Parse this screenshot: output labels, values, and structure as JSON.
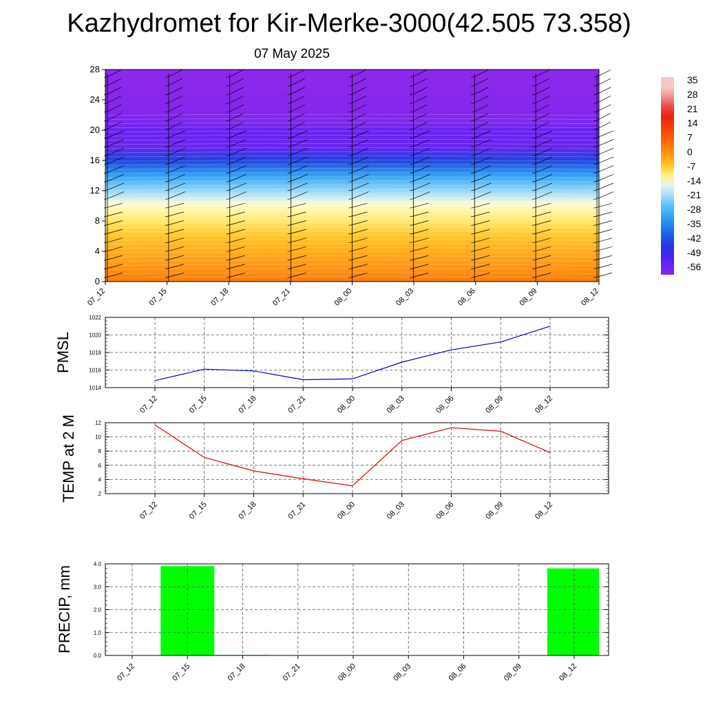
{
  "title": "Kazhydromet for Kir-Merke-3000(42.505 73.358)",
  "subtitle": "07 May 2025",
  "time_labels": [
    "07_12",
    "07_15",
    "07_18",
    "07_21",
    "08_00",
    "08_03",
    "08_06",
    "08_09",
    "08_12"
  ],
  "colors": {
    "pmsl_line": "#0000cc",
    "temp_line": "#dd0000",
    "precip_bar": "#00ff00",
    "barb": "#000000"
  },
  "chart_data": [
    {
      "type": "heatmap",
      "title": "",
      "xlabel": "",
      "ylabel": "",
      "x": [
        "07_12",
        "07_15",
        "07_18",
        "07_21",
        "08_00",
        "08_03",
        "08_06",
        "08_09",
        "08_12"
      ],
      "ylim": [
        0,
        28
      ],
      "yticks": [
        0,
        4,
        8,
        12,
        16,
        20,
        24,
        28
      ],
      "value_profile": [
        {
          "height": 0,
          "value": 5
        },
        {
          "height": 2,
          "value": 1
        },
        {
          "height": 4,
          "value": -2
        },
        {
          "height": 6,
          "value": -5
        },
        {
          "height": 8,
          "value": -9
        },
        {
          "height": 10,
          "value": -13
        },
        {
          "height": 10.5,
          "value": -15
        },
        {
          "height": 12,
          "value": -22
        },
        {
          "height": 14,
          "value": -32
        },
        {
          "height": 16,
          "value": -45
        },
        {
          "height": 18,
          "value": -58
        },
        {
          "height": 20,
          "value": -57
        },
        {
          "height": 21,
          "value": -62
        },
        {
          "height": 24,
          "value": -64
        },
        {
          "height": 28,
          "value": -65
        }
      ],
      "colorbar": {
        "labels": [
          "35",
          "28",
          "21",
          "14",
          "7",
          "0",
          "-7",
          "-14",
          "-21",
          "-28",
          "-35",
          "-42",
          "-49",
          "-56"
        ],
        "values": [
          35,
          28,
          21,
          14,
          7,
          0,
          -7,
          -14,
          -21,
          -28,
          -35,
          -42,
          -49,
          -56
        ]
      },
      "wind_barbs": true,
      "grid": false
    },
    {
      "type": "line",
      "ylabel": "PMSL",
      "x": [
        "07_12",
        "07_15",
        "07_18",
        "07_21",
        "08_00",
        "08_03",
        "08_06",
        "08_09",
        "08_12"
      ],
      "values": [
        1014.8,
        1016.1,
        1015.9,
        1014.9,
        1015.0,
        1016.9,
        1018.3,
        1019.2,
        1021.0
      ],
      "ylim": [
        1014,
        1022
      ],
      "yticks": [
        1014,
        1016,
        1018,
        1020,
        1022
      ],
      "grid": true
    },
    {
      "type": "line",
      "ylabel": "TEMP at 2 M",
      "x": [
        "07_12",
        "07_15",
        "07_18",
        "07_21",
        "08_00",
        "08_03",
        "08_06",
        "08_09",
        "08_12"
      ],
      "values": [
        11.7,
        7.1,
        5.2,
        4.1,
        3.1,
        9.5,
        11.3,
        10.8,
        7.8
      ],
      "ylim": [
        2,
        12
      ],
      "yticks": [
        2,
        4,
        6,
        8,
        10,
        12
      ],
      "grid": true
    },
    {
      "type": "bar",
      "ylabel": "PRECIP, mm",
      "x": [
        "07_12",
        "07_15",
        "07_18",
        "07_21",
        "08_00",
        "08_03",
        "08_06",
        "08_09",
        "08_12"
      ],
      "values": [
        0.0,
        3.9,
        0.02,
        0.0,
        0.0,
        0.0,
        0.0,
        0.0,
        3.8
      ],
      "ylim": [
        0,
        4
      ],
      "yticks": [
        "0.0",
        "1.0",
        "2.0",
        "3.0",
        "4.0"
      ],
      "grid": true
    }
  ]
}
